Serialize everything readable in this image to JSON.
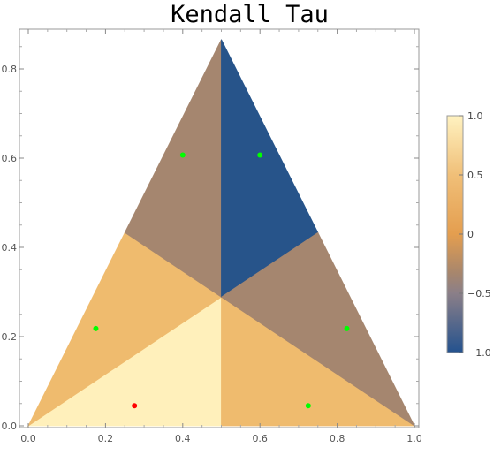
{
  "chart_data": {
    "type": "heatmap",
    "title": "Kendall Tau",
    "xlabel": "",
    "ylabel": "",
    "xlim": [
      0.0,
      1.0
    ],
    "ylim": [
      0.0,
      0.866
    ],
    "x_ticks": [
      "0.0",
      "0.2",
      "0.4",
      "0.6",
      "0.8",
      "1.0"
    ],
    "y_ticks": [
      "0.0",
      "0.2",
      "0.4",
      "0.6",
      "0.8"
    ],
    "triangle_vertices": [
      [
        0.0,
        0.0
      ],
      [
        1.0,
        0.0
      ],
      [
        0.5,
        0.866
      ]
    ],
    "centroid": [
      0.5,
      0.2887
    ],
    "regions": [
      {
        "name": "bottom-left-inner",
        "polygon": [
          [
            0.0,
            0.0
          ],
          [
            0.5,
            0.0
          ],
          [
            0.5,
            0.2887
          ]
        ],
        "value": 1.0
      },
      {
        "name": "bottom-right-inner",
        "polygon": [
          [
            0.5,
            0.0
          ],
          [
            1.0,
            0.0
          ],
          [
            0.5,
            0.2887
          ]
        ],
        "value": 0.33
      },
      {
        "name": "left-middle",
        "polygon": [
          [
            0.0,
            0.0
          ],
          [
            0.5,
            0.2887
          ],
          [
            0.25,
            0.433
          ]
        ],
        "value": 0.33
      },
      {
        "name": "left-upper",
        "polygon": [
          [
            0.25,
            0.433
          ],
          [
            0.5,
            0.2887
          ],
          [
            0.5,
            0.866
          ]
        ],
        "value": -0.33
      },
      {
        "name": "right-upper",
        "polygon": [
          [
            0.5,
            0.866
          ],
          [
            0.5,
            0.2887
          ],
          [
            0.75,
            0.433
          ]
        ],
        "value": -1.0
      },
      {
        "name": "right-middle",
        "polygon": [
          [
            0.75,
            0.433
          ],
          [
            0.5,
            0.2887
          ],
          [
            1.0,
            0.0
          ]
        ],
        "value": -0.33
      }
    ],
    "points": [
      {
        "x": 0.275,
        "y": 0.045,
        "color": "#ff0000"
      },
      {
        "x": 0.175,
        "y": 0.218,
        "color": "#00ff00"
      },
      {
        "x": 0.4,
        "y": 0.607,
        "color": "#00ff00"
      },
      {
        "x": 0.6,
        "y": 0.607,
        "color": "#00ff00"
      },
      {
        "x": 0.825,
        "y": 0.218,
        "color": "#00ff00"
      },
      {
        "x": 0.725,
        "y": 0.045,
        "color": "#00ff00"
      }
    ],
    "colorbar": {
      "range": [
        -1.0,
        1.0
      ],
      "ticks": [
        "1.0",
        "0.5",
        "0",
        "−0.5",
        "−1.0"
      ],
      "tick_values": [
        1.0,
        0.5,
        0.0,
        -0.5,
        -1.0
      ],
      "stops": [
        {
          "value": 1.0,
          "color": "#fff2c0"
        },
        {
          "value": 0.5,
          "color": "#f0bf78"
        },
        {
          "value": 0.0,
          "color": "#e49e4f"
        },
        {
          "value": -0.33,
          "color": "#a7866d"
        },
        {
          "value": -0.5,
          "color": "#8b7f88"
        },
        {
          "value": -1.0,
          "color": "#24528e"
        }
      ]
    },
    "region_colors": {
      "1.0": "#fff0bb",
      "0.33": "#efbb6e",
      "-0.33": "#a5866f",
      "-1.0": "#27548a"
    },
    "grid": false
  }
}
